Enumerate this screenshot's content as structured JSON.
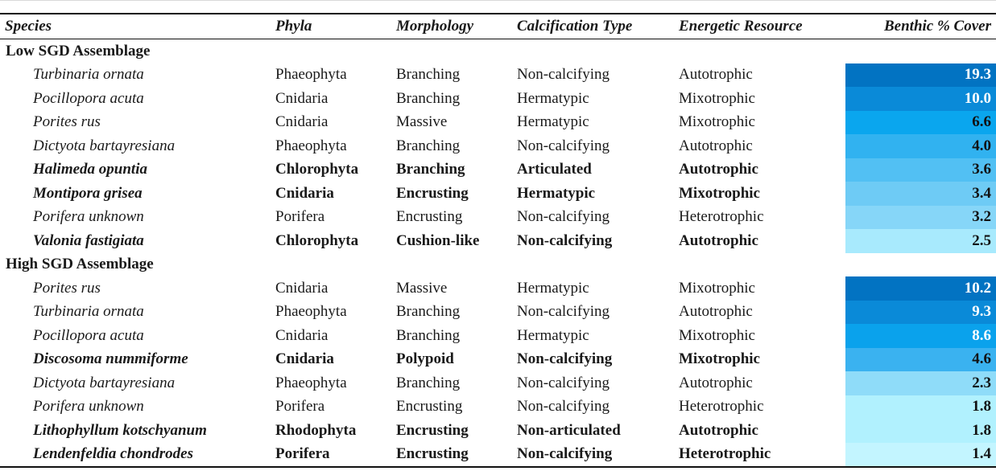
{
  "headers": [
    "Species",
    "Phyla",
    "Morphology",
    "Calcification Type",
    "Energetic Resource",
    "Benthic % Cover"
  ],
  "groups": [
    {
      "label": "Low SGD Assemblage",
      "rows": [
        {
          "species": "Turbinaria ornata",
          "phyla": "Phaeophyta",
          "morphology": "Branching",
          "calcification": "Non-calcifying",
          "energetic": "Autotrophic",
          "cover": "19.3",
          "bold": false,
          "color": "#0273c2",
          "text_color": "#ffffff"
        },
        {
          "species": "Pocillopora acuta",
          "phyla": "Cnidaria",
          "morphology": "Branching",
          "calcification": "Hermatypic",
          "energetic": "Mixotrophic",
          "cover": "10.0",
          "bold": false,
          "color": "#0a8ad8",
          "text_color": "#ffffff"
        },
        {
          "species": "Porites rus",
          "phyla": "Cnidaria",
          "morphology": "Massive",
          "calcification": "Hermatypic",
          "energetic": "Mixotrophic",
          "cover": "6.6",
          "bold": false,
          "color": "#0aa6ee",
          "text_color": "#111111"
        },
        {
          "species": "Dictyota bartayresiana",
          "phyla": "Phaeophyta",
          "morphology": "Branching",
          "calcification": "Non-calcifying",
          "energetic": "Autotrophic",
          "cover": "4.0",
          "bold": false,
          "color": "#31b2f0",
          "text_color": "#111111"
        },
        {
          "species": "Halimeda opuntia",
          "phyla": "Chlorophyta",
          "morphology": "Branching",
          "calcification": "Articulated",
          "energetic": "Autotrophic",
          "cover": "3.6",
          "bold": true,
          "color": "#52c0f3",
          "text_color": "#111111"
        },
        {
          "species": "Montipora grisea",
          "phyla": "Cnidaria",
          "morphology": "Encrusting",
          "calcification": "Hermatypic",
          "energetic": "Mixotrophic",
          "cover": "3.4",
          "bold": true,
          "color": "#6ecbf5",
          "text_color": "#111111"
        },
        {
          "species": "Porifera unknown",
          "phyla": "Porifera",
          "morphology": "Encrusting",
          "calcification": "Non-calcifying",
          "energetic": "Heterotrophic",
          "cover": "3.2",
          "bold": false,
          "color": "#86d6f8",
          "text_color": "#111111"
        },
        {
          "species": "Valonia fastigiata",
          "phyla": "Chlorophyta",
          "morphology": "Cushion-like",
          "calcification": "Non-calcifying",
          "energetic": "Autotrophic",
          "cover": "2.5",
          "bold": true,
          "color": "#a8eafd",
          "text_color": "#111111"
        }
      ]
    },
    {
      "label": "High SGD Assemblage",
      "rows": [
        {
          "species": "Porites rus",
          "phyla": "Cnidaria",
          "morphology": "Massive",
          "calcification": "Hermatypic",
          "energetic": "Mixotrophic",
          "cover": "10.2",
          "bold": false,
          "color": "#0273c2",
          "text_color": "#ffffff"
        },
        {
          "species": "Turbinaria ornata",
          "phyla": "Phaeophyta",
          "morphology": "Branching",
          "calcification": "Non-calcifying",
          "energetic": "Autotrophic",
          "cover": "9.3",
          "bold": false,
          "color": "#0a8ad8",
          "text_color": "#ffffff"
        },
        {
          "species": "Pocillopora acuta",
          "phyla": "Cnidaria",
          "morphology": "Branching",
          "calcification": "Hermatypic",
          "energetic": "Mixotrophic",
          "cover": "8.6",
          "bold": false,
          "color": "#0aa2ec",
          "text_color": "#ffffff"
        },
        {
          "species": "Discosoma nummiforme",
          "phyla": "Cnidaria",
          "morphology": "Polypoid",
          "calcification": "Non-calcifying",
          "energetic": "Mixotrophic",
          "cover": "4.6",
          "bold": true,
          "color": "#3ab2f0",
          "text_color": "#111111"
        },
        {
          "species": "Dictyota bartayresiana",
          "phyla": "Phaeophyta",
          "morphology": "Branching",
          "calcification": "Non-calcifying",
          "energetic": "Autotrophic",
          "cover": "2.3",
          "bold": false,
          "color": "#8fdcf9",
          "text_color": "#111111"
        },
        {
          "species": "Porifera unknown",
          "phyla": "Porifera",
          "morphology": "Encrusting",
          "calcification": "Non-calcifying",
          "energetic": "Heterotrophic",
          "cover": "1.8",
          "bold": false,
          "color": "#b1f1fe",
          "text_color": "#111111"
        },
        {
          "species": "Lithophyllum kotschyanum",
          "phyla": "Rhodophyta",
          "morphology": "Encrusting",
          "calcification": "Non-articulated",
          "energetic": "Autotrophic",
          "cover": "1.8",
          "bold": true,
          "color": "#b1f1fe",
          "text_color": "#111111"
        },
        {
          "species": "Lendenfeldia chondrodes",
          "phyla": "Porifera",
          "morphology": "Encrusting",
          "calcification": "Non-calcifying",
          "energetic": "Heterotrophic",
          "cover": "1.4",
          "bold": true,
          "color": "#c3f5ff",
          "text_color": "#111111"
        }
      ]
    }
  ]
}
